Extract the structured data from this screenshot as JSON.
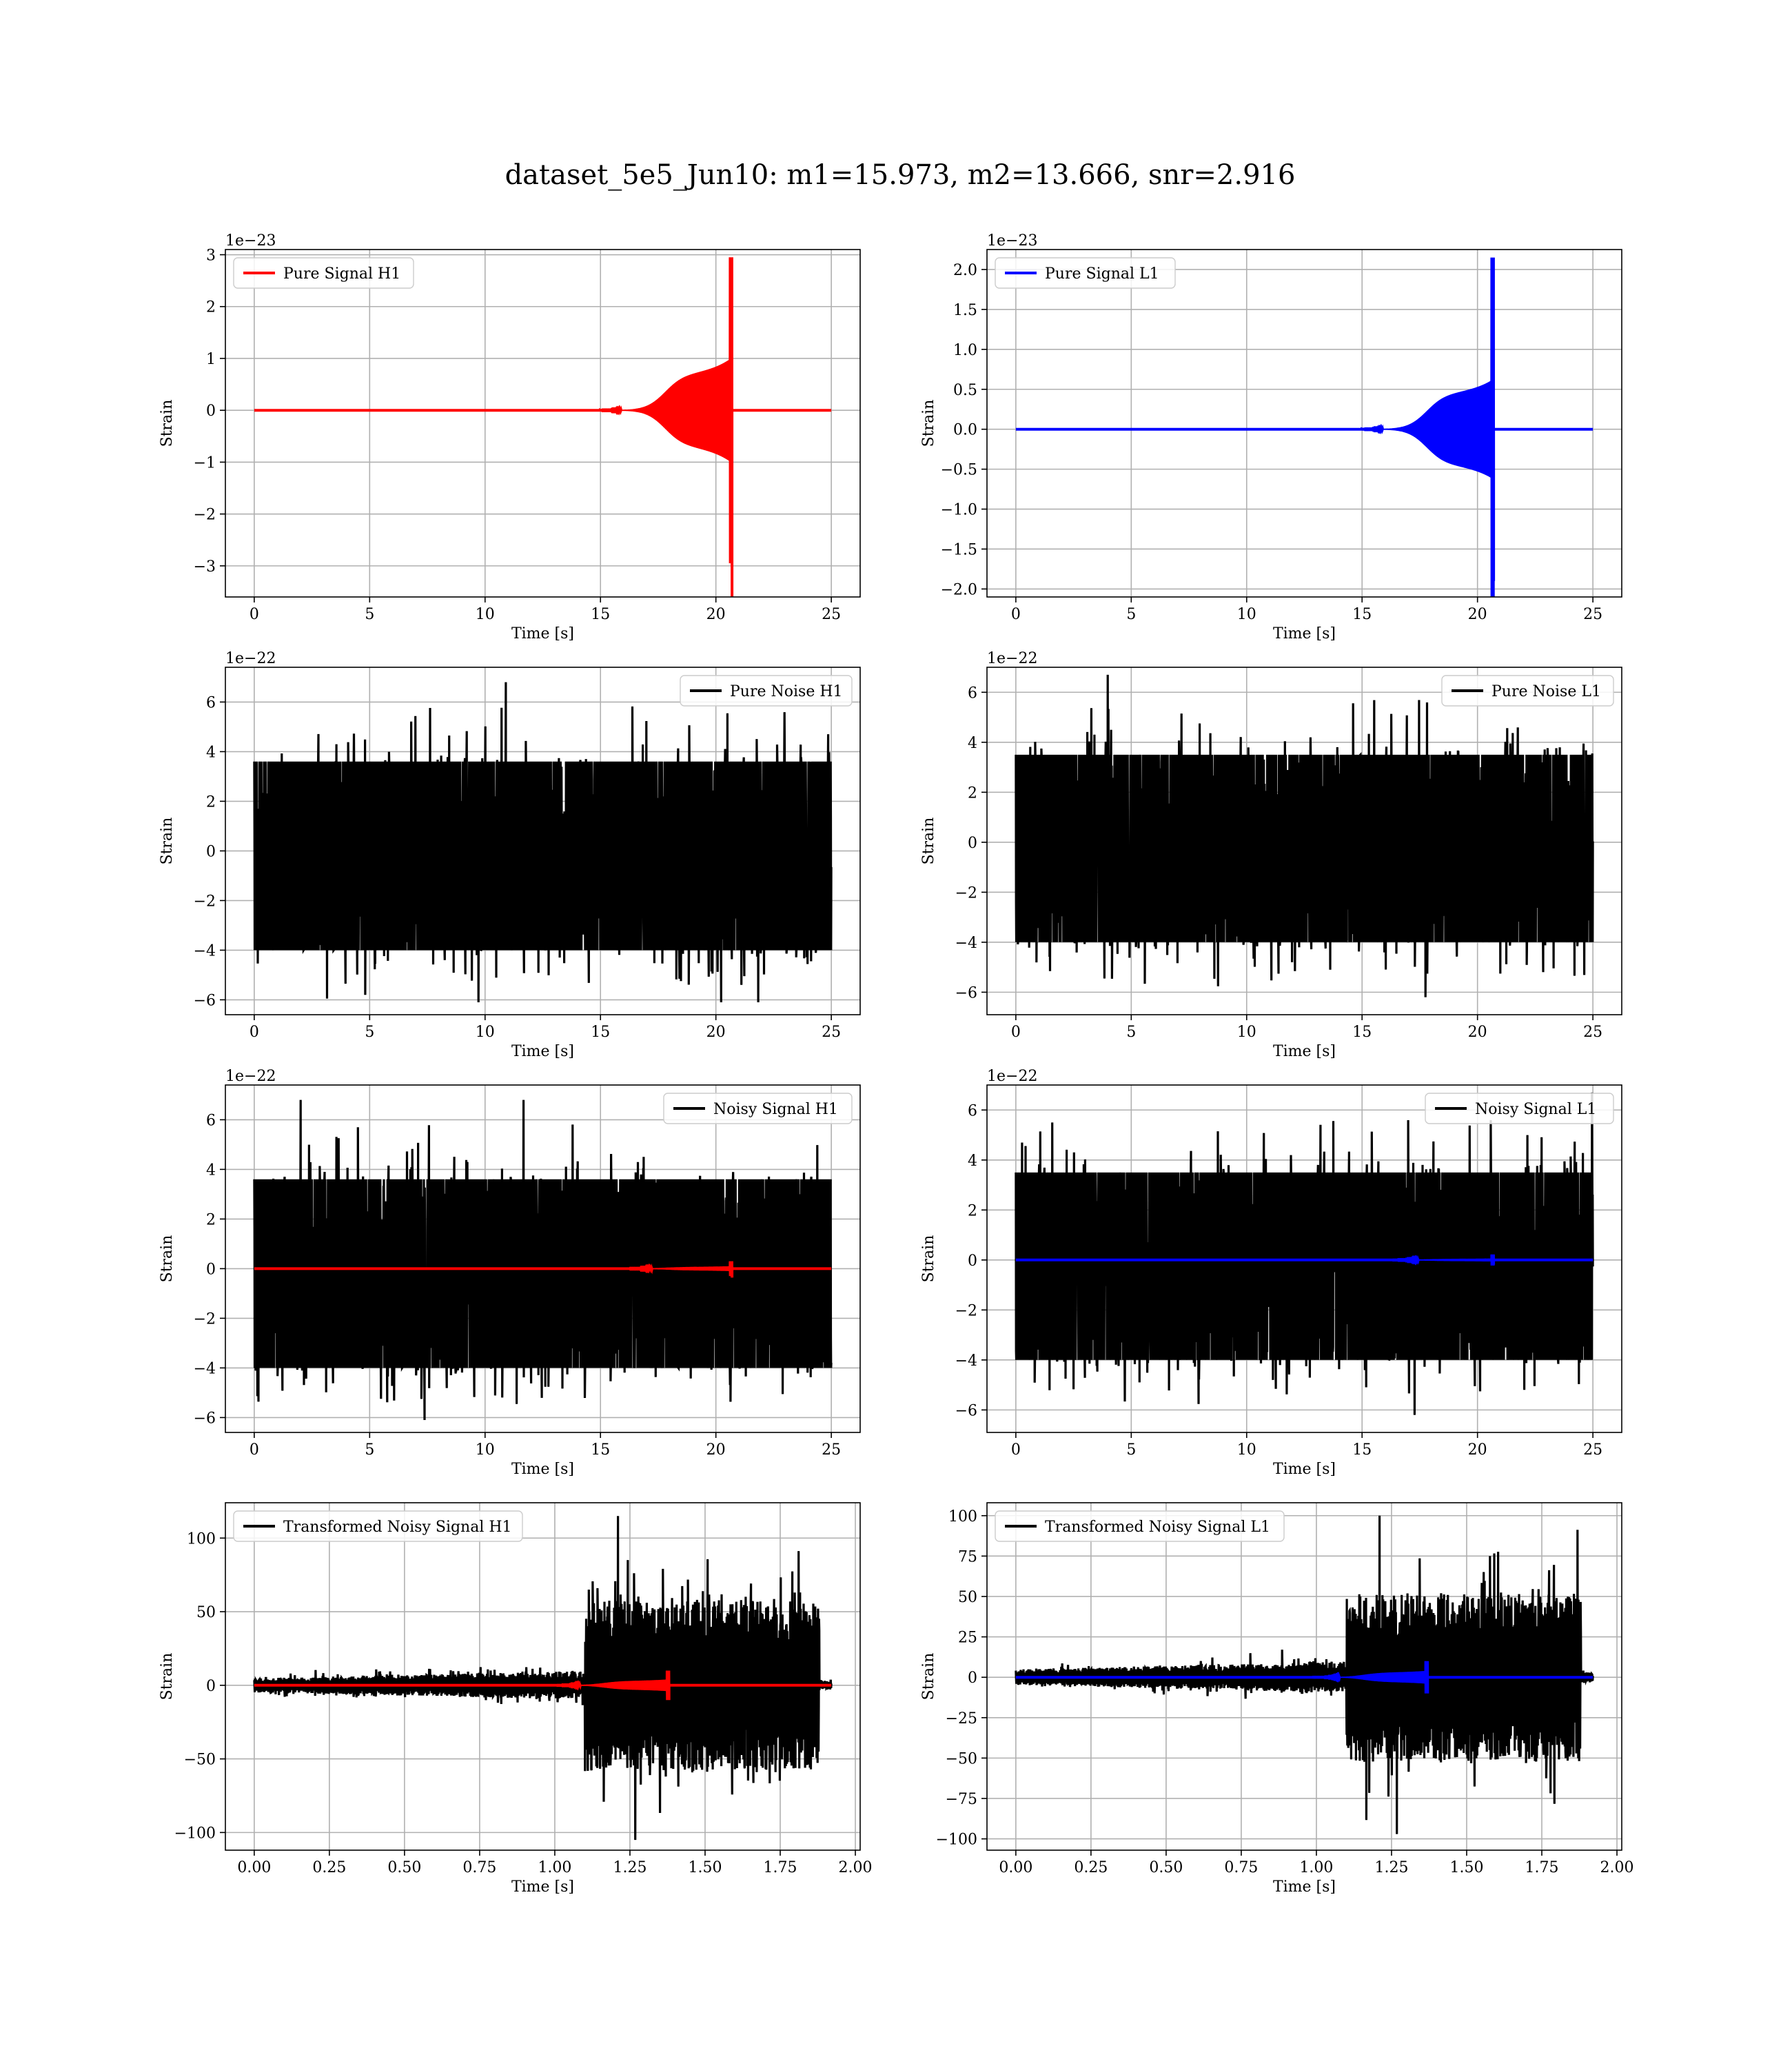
{
  "title": "dataset_5e5_Jun10: m1=15.973, m2=13.666, snr=2.916",
  "colors": {
    "h1": "#ff0000",
    "l1": "#0000ff",
    "noise": "#000000",
    "grid": "#b0b0b0"
  },
  "chart_data": [
    {
      "type": "line",
      "title": "",
      "xlabel": "Time [s]",
      "ylabel": "Strain",
      "offset_text": "1e−23",
      "xlim": [
        -1.25,
        26.25
      ],
      "ylim": [
        -3.6,
        3.1
      ],
      "xticks": [
        0,
        5,
        10,
        15,
        20,
        25
      ],
      "yticks": [
        -3,
        -2,
        -1,
        0,
        1,
        2,
        3
      ],
      "grid": true,
      "legend_position": "top-left",
      "series": [
        {
          "name": "Pure Signal H1",
          "color": "#ff0000",
          "kind": "chirp",
          "x_range": [
            0,
            25
          ],
          "start": 15.0,
          "merger": 20.7,
          "plateau": 0.7,
          "ramp": 1.0,
          "peak_pos": 2.95,
          "peak_neg": -3.65,
          "x": [
            15.0,
            17.5,
            20.0,
            20.7
          ],
          "y": [
            0.0,
            0.7,
            0.9,
            2.95
          ]
        }
      ]
    },
    {
      "type": "line",
      "title": "",
      "xlabel": "Time [s]",
      "ylabel": "Strain",
      "offset_text": "1e−23",
      "xlim": [
        -1.25,
        26.25
      ],
      "ylim": [
        -2.1,
        2.25
      ],
      "xticks": [
        0,
        5,
        10,
        15,
        20,
        25
      ],
      "yticks": [
        -2.0,
        -1.5,
        -1.0,
        -0.5,
        0.0,
        0.5,
        1.0,
        1.5,
        2.0
      ],
      "yticklabels": [
        "−2.0",
        "−1.5",
        "−1.0",
        "−0.5",
        "0.0",
        "0.5",
        "1.0",
        "1.5",
        "2.0"
      ],
      "grid": true,
      "legend_position": "top-left",
      "series": [
        {
          "name": "Pure Signal L1",
          "color": "#0000ff",
          "kind": "chirp",
          "x_range": [
            0,
            25
          ],
          "start": 15.0,
          "merger": 20.7,
          "plateau": 0.45,
          "ramp": 0.62,
          "peak_pos": 2.15,
          "peak_neg": -1.9,
          "x": [
            15.0,
            17.5,
            20.0,
            20.7
          ],
          "y": [
            0.0,
            0.45,
            0.6,
            2.15
          ]
        }
      ]
    },
    {
      "type": "line",
      "title": "",
      "xlabel": "Time [s]",
      "ylabel": "Strain",
      "offset_text": "1e−22",
      "xlim": [
        -1.25,
        26.25
      ],
      "ylim": [
        -6.6,
        7.4
      ],
      "xticks": [
        0,
        5,
        10,
        15,
        20,
        25
      ],
      "yticks": [
        -6,
        -4,
        -2,
        0,
        2,
        4,
        6
      ],
      "grid": true,
      "legend_position": "top-right",
      "series": [
        {
          "name": "Pure Noise H1",
          "color": "#000000",
          "kind": "noise",
          "x_range": [
            0,
            25
          ],
          "band_min": -4.0,
          "band_max": 3.6,
          "max": 6.8,
          "min": -6.1
        }
      ]
    },
    {
      "type": "line",
      "title": "",
      "xlabel": "Time [s]",
      "ylabel": "Strain",
      "offset_text": "1e−22",
      "xlim": [
        -1.25,
        26.25
      ],
      "ylim": [
        -6.9,
        7.0
      ],
      "xticks": [
        0,
        5,
        10,
        15,
        20,
        25
      ],
      "yticks": [
        -6,
        -4,
        -2,
        0,
        2,
        4,
        6
      ],
      "grid": true,
      "legend_position": "top-right",
      "series": [
        {
          "name": "Pure Noise L1",
          "color": "#000000",
          "kind": "noise",
          "x_range": [
            0,
            25
          ],
          "band_min": -4.0,
          "band_max": 3.5,
          "max": 6.7,
          "min": -6.2
        }
      ]
    },
    {
      "type": "line",
      "title": "",
      "xlabel": "Time [s]",
      "ylabel": "Strain",
      "offset_text": "1e−22",
      "xlim": [
        -1.25,
        26.25
      ],
      "ylim": [
        -6.6,
        7.4
      ],
      "xticks": [
        0,
        5,
        10,
        15,
        20,
        25
      ],
      "yticks": [
        -6,
        -4,
        -2,
        0,
        2,
        4,
        6
      ],
      "grid": true,
      "legend_position": "top-right",
      "series": [
        {
          "name": "Noisy Signal H1",
          "color": "#000000",
          "kind": "noise",
          "x_range": [
            0,
            25
          ],
          "band_min": -4.0,
          "band_max": 3.6,
          "max": 6.8,
          "min": -6.1
        },
        {
          "name": "",
          "color": "#ff0000",
          "kind": "chirp",
          "x_range": [
            0,
            25
          ],
          "start": 15.0,
          "merger": 20.7,
          "plateau": 0.07,
          "ramp": 0.1,
          "peak_pos": 0.3,
          "peak_neg": -0.36
        }
      ]
    },
    {
      "type": "line",
      "title": "",
      "xlabel": "Time [s]",
      "ylabel": "Strain",
      "offset_text": "1e−22",
      "xlim": [
        -1.25,
        26.25
      ],
      "ylim": [
        -6.9,
        7.0
      ],
      "xticks": [
        0,
        5,
        10,
        15,
        20,
        25
      ],
      "yticks": [
        -6,
        -4,
        -2,
        0,
        2,
        4,
        6
      ],
      "grid": true,
      "legend_position": "top-right",
      "series": [
        {
          "name": "Noisy Signal L1",
          "color": "#000000",
          "kind": "noise",
          "x_range": [
            0,
            25
          ],
          "band_min": -4.0,
          "band_max": 3.5,
          "max": 6.7,
          "min": -6.2
        },
        {
          "name": "",
          "color": "#0000ff",
          "kind": "chirp",
          "x_range": [
            0,
            25
          ],
          "start": 15.0,
          "merger": 20.7,
          "plateau": 0.045,
          "ramp": 0.06,
          "peak_pos": 0.22,
          "peak_neg": -0.19
        }
      ]
    },
    {
      "type": "line",
      "title": "",
      "xlabel": "Time [s]",
      "ylabel": "Strain",
      "offset_text": "",
      "xlim": [
        -0.096,
        2.016
      ],
      "ylim": [
        -112,
        124
      ],
      "xticks": [
        0.0,
        0.25,
        0.5,
        0.75,
        1.0,
        1.25,
        1.5,
        1.75,
        2.0
      ],
      "xticklabels": [
        "0.00",
        "0.25",
        "0.50",
        "0.75",
        "1.00",
        "1.25",
        "1.50",
        "1.75",
        "2.00"
      ],
      "yticks": [
        -100,
        -50,
        0,
        50,
        100
      ],
      "yticklabels": [
        "−100",
        "−50",
        "0",
        "50",
        "100"
      ],
      "grid": true,
      "legend_position": "top-left",
      "series": [
        {
          "name": "Transformed Noisy Signal H1",
          "color": "#000000",
          "kind": "transformed",
          "x_range": [
            0,
            1.92
          ],
          "low_amp": 8,
          "step_at": 1.1,
          "high_amp": 58,
          "end_at": 1.88,
          "max": 115,
          "min": -105
        },
        {
          "name": "",
          "color": "#ff0000",
          "kind": "chirp",
          "x_range": [
            0,
            1.92
          ],
          "start": 0.95,
          "merger": 1.38,
          "plateau": 3,
          "ramp": 4,
          "peak_pos": 10,
          "peak_neg": -10
        }
      ]
    },
    {
      "type": "line",
      "title": "",
      "xlabel": "Time [s]",
      "ylabel": "Strain",
      "offset_text": "",
      "xlim": [
        -0.096,
        2.016
      ],
      "ylim": [
        -107,
        108
      ],
      "xticks": [
        0.0,
        0.25,
        0.5,
        0.75,
        1.0,
        1.25,
        1.5,
        1.75,
        2.0
      ],
      "xticklabels": [
        "0.00",
        "0.25",
        "0.50",
        "0.75",
        "1.00",
        "1.25",
        "1.50",
        "1.75",
        "2.00"
      ],
      "yticks": [
        -100,
        -75,
        -50,
        -25,
        0,
        25,
        50,
        75,
        100
      ],
      "yticklabels": [
        "−100",
        "−75",
        "−50",
        "−25",
        "0",
        "25",
        "50",
        "75",
        "100"
      ],
      "grid": true,
      "legend_position": "top-left",
      "series": [
        {
          "name": "Transformed Noisy Signal L1",
          "color": "#000000",
          "kind": "transformed",
          "x_range": [
            0,
            1.92
          ],
          "low_amp": 8,
          "step_at": 1.1,
          "high_amp": 52,
          "end_at": 1.88,
          "max": 100,
          "min": -97
        },
        {
          "name": "",
          "color": "#0000ff",
          "kind": "chirp",
          "x_range": [
            0,
            1.92
          ],
          "start": 0.95,
          "merger": 1.37,
          "plateau": 3,
          "ramp": 4,
          "peak_pos": 10,
          "peak_neg": -10
        }
      ]
    }
  ]
}
